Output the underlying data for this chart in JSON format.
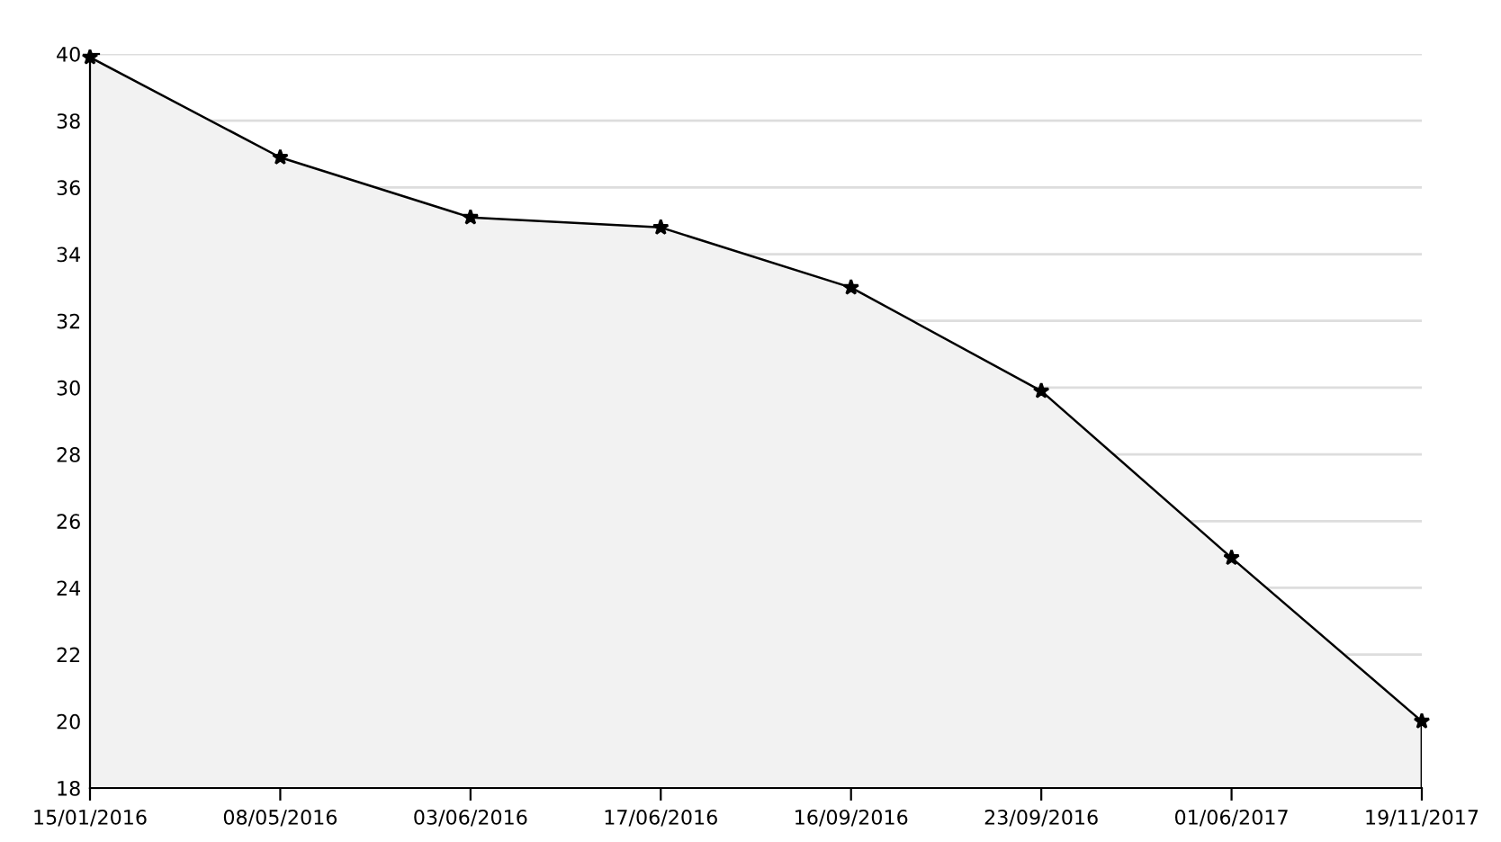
{
  "chart_data": {
    "type": "area",
    "categories": [
      "15/01/2016",
      "08/05/2016",
      "03/06/2016",
      "17/06/2016",
      "16/09/2016",
      "23/09/2016",
      "01/06/2017",
      "19/11/2017"
    ],
    "series": [
      {
        "color": "#000000",
        "values": [
          39.9,
          36.9,
          35.1,
          34.8,
          33.0,
          29.9,
          24.9,
          20.0
        ]
      }
    ],
    "ylim": [
      18,
      40
    ],
    "yticks": [
      18,
      20,
      22,
      24,
      26,
      28,
      30,
      32,
      34,
      36,
      38,
      40
    ],
    "grid": "y",
    "marker": "star",
    "line_style": "solid",
    "legend": false
  }
}
